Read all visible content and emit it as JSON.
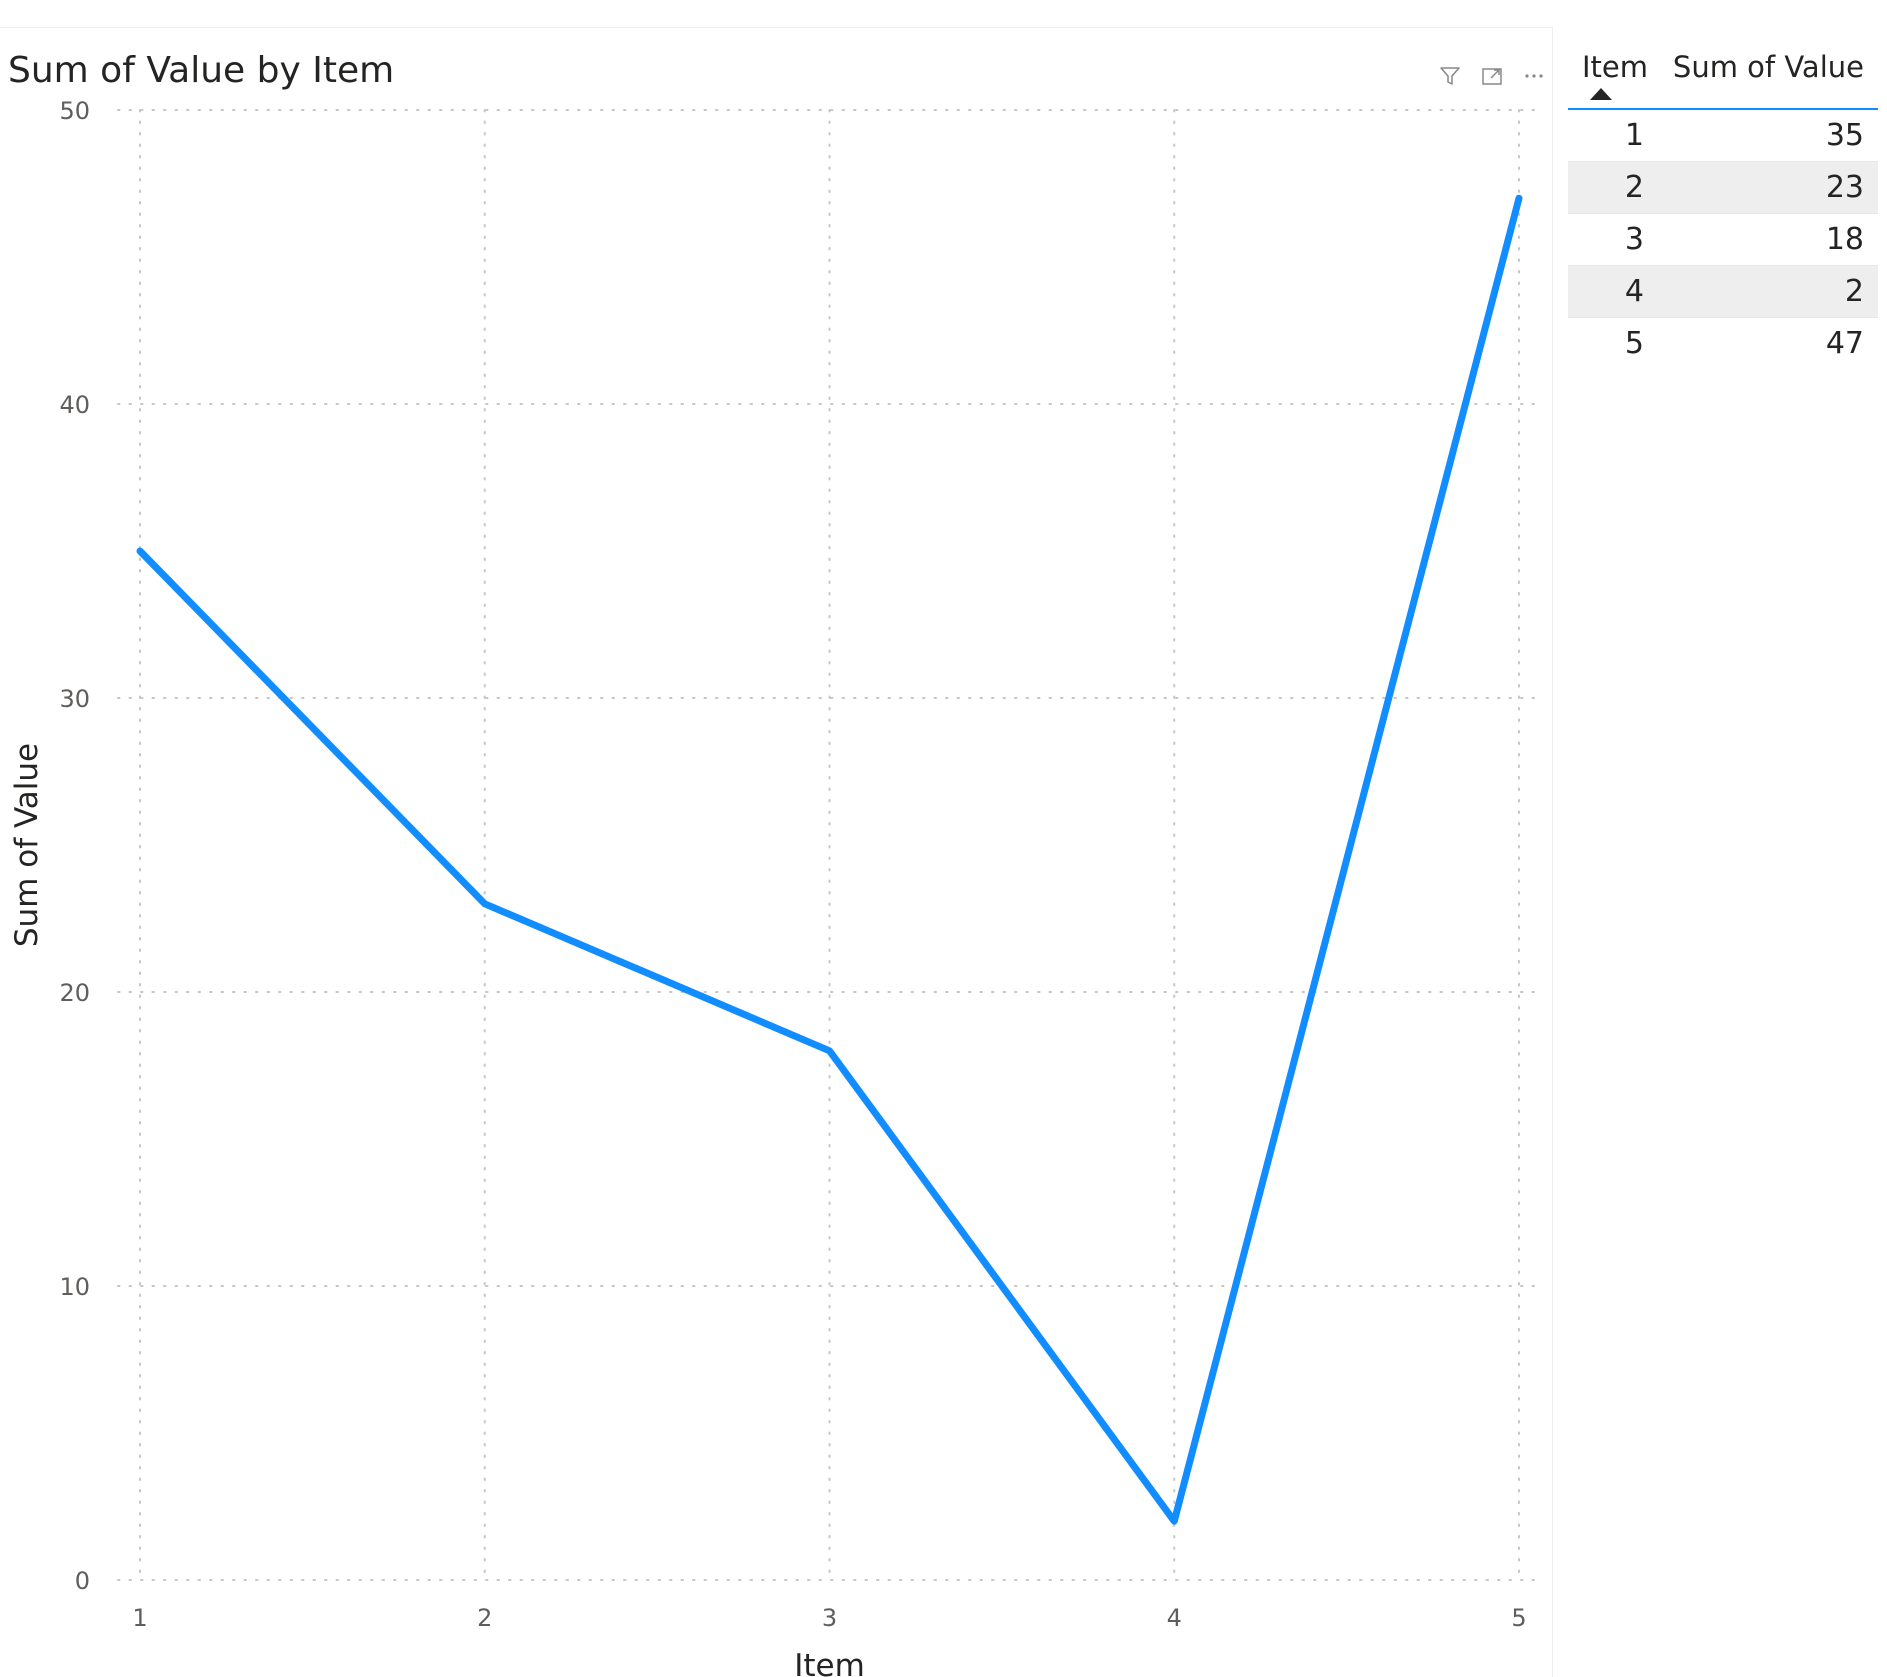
{
  "chart_data": {
    "type": "line",
    "title": "Sum of Value by Item",
    "xlabel": "Item",
    "ylabel": "Sum of Value",
    "x": [
      1,
      2,
      3,
      4,
      5
    ],
    "ylim": [
      0,
      50
    ],
    "yticks": [
      0,
      10,
      20,
      30,
      40,
      50
    ],
    "grid": true,
    "series": [
      {
        "values": [
          35,
          23,
          18,
          2,
          47
        ],
        "color": "#118dff"
      }
    ]
  },
  "visual_header": {
    "icons": [
      "filter-icon",
      "focus-mode-icon",
      "more-options-icon"
    ]
  },
  "table": {
    "columns": [
      "Item",
      "Sum of Value"
    ],
    "sort": "ascending",
    "rows": [
      {
        "item": "1",
        "value": "35"
      },
      {
        "item": "2",
        "value": "23"
      },
      {
        "item": "3",
        "value": "18"
      },
      {
        "item": "4",
        "value": "2"
      },
      {
        "item": "5",
        "value": "47"
      }
    ]
  }
}
